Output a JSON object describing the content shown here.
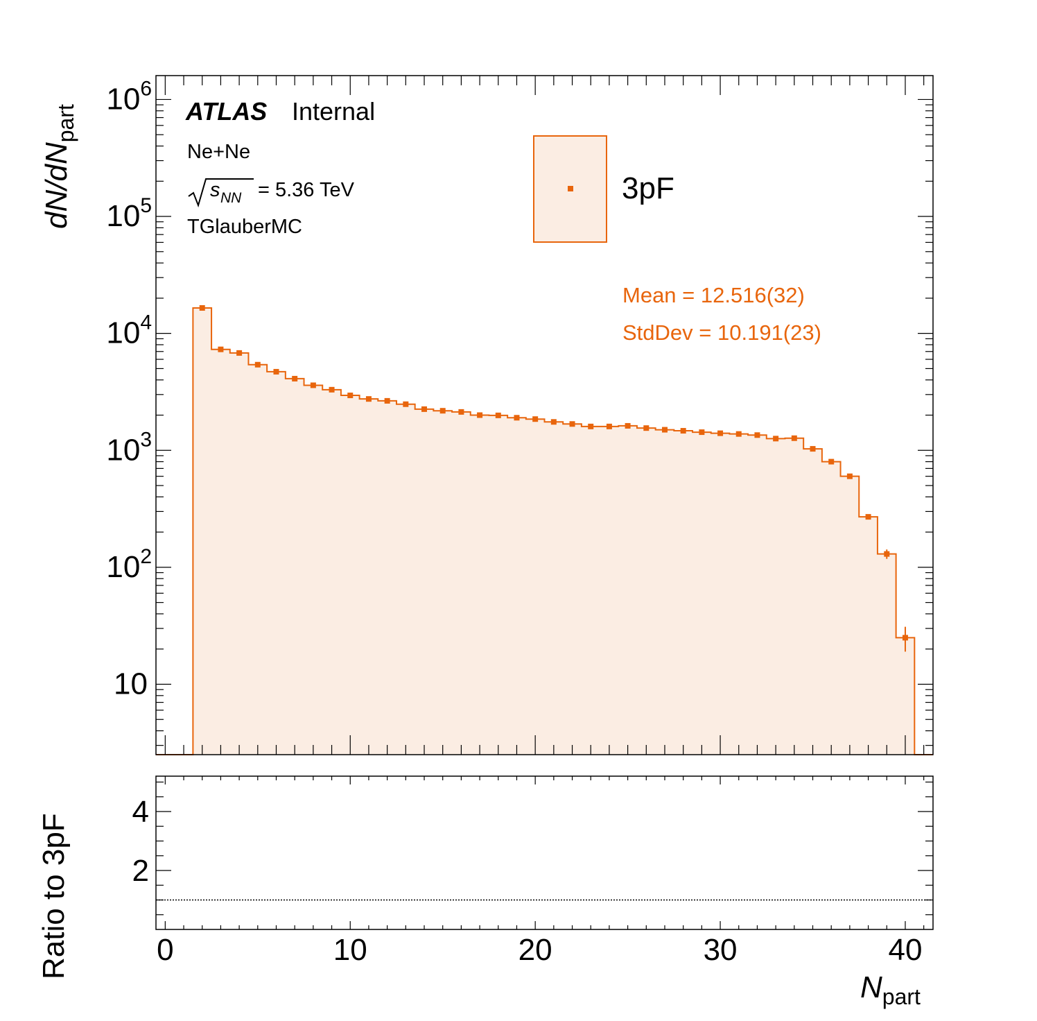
{
  "labels": {
    "atlas": "ATLAS",
    "internal": "Internal",
    "system": "Ne+Ne",
    "energy_value": "= 5.36 TeV",
    "generator": "TGlauberMC",
    "legend_entry": "3pF",
    "mean": "Mean = 12.516(32)",
    "stddev": "StdDev = 10.191(23)",
    "ylabel_top": "dN/dN",
    "ylabel_top_sub": "part",
    "ylabel_ratio": "Ratio to 3pF",
    "xlabel": "N",
    "xlabel_sub": "part"
  },
  "colors": {
    "series": "#e8650c",
    "fill": "#fbede3",
    "axis": "#000000"
  },
  "chart_data": [
    {
      "type": "bar",
      "style": "histogram-step-filled-with-markers",
      "x_edges_start": 1.5,
      "bin_width": 1,
      "x": [
        2,
        3,
        4,
        5,
        6,
        7,
        8,
        9,
        10,
        11,
        12,
        13,
        14,
        15,
        16,
        17,
        18,
        19,
        20,
        21,
        22,
        23,
        24,
        25,
        26,
        27,
        28,
        29,
        30,
        31,
        32,
        33,
        34,
        35,
        36,
        37,
        38,
        39,
        40
      ],
      "values": [
        16500,
        7300,
        6800,
        5400,
        4700,
        4100,
        3600,
        3300,
        2950,
        2750,
        2650,
        2480,
        2250,
        2180,
        2130,
        2000,
        1990,
        1900,
        1850,
        1750,
        1680,
        1600,
        1600,
        1620,
        1550,
        1500,
        1470,
        1430,
        1400,
        1380,
        1350,
        1260,
        1270,
        1030,
        800,
        600,
        270,
        130,
        25
      ],
      "errors": [
        0,
        0,
        0,
        0,
        0,
        0,
        0,
        0,
        0,
        0,
        0,
        0,
        0,
        0,
        0,
        0,
        0,
        0,
        0,
        0,
        0,
        0,
        0,
        0,
        0,
        0,
        0,
        0,
        0,
        0,
        0,
        0,
        0,
        0,
        0,
        0,
        10,
        12,
        6
      ],
      "series_name": "3pF",
      "xlim": [
        -0.5,
        41.5
      ],
      "ylim": [
        2.5,
        1600000
      ],
      "yscale": "log",
      "ytick_labels": [
        "10",
        "10^2",
        "10^3",
        "10^4",
        "10^5",
        "10^6"
      ],
      "legend_position": "top-center"
    },
    {
      "type": "line",
      "style": "ratio-panel",
      "reference_line_y": 1,
      "xlim": [
        -0.5,
        41.5
      ],
      "ylim": [
        0,
        5.2
      ],
      "ytick_labels": [
        "2",
        "4"
      ],
      "xtick_labels": [
        "0",
        "10",
        "20",
        "30",
        "40"
      ]
    }
  ]
}
